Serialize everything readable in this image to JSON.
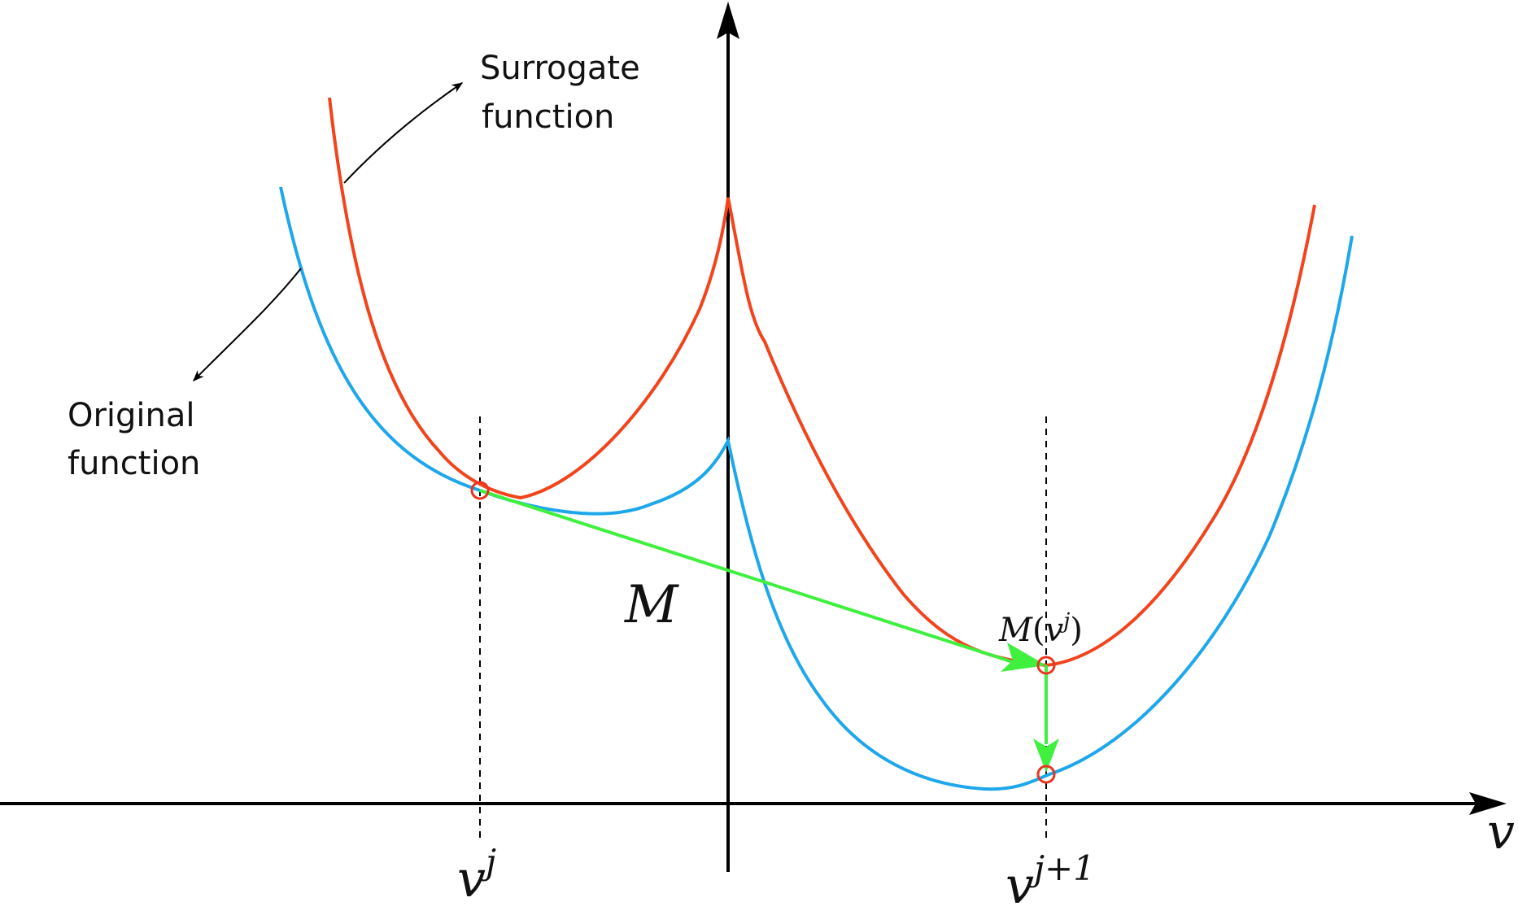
{
  "labels": {
    "surrogate_line1": "Surrogate",
    "surrogate_line2": "function",
    "original_line1": "Original",
    "original_line2": "function",
    "axis_var": "v",
    "v_j_base": "v",
    "v_j_sup": "j",
    "v_j1_base": "v",
    "v_j1_sup": "j+1",
    "mapping": "M",
    "mapping_point_prefix": "M",
    "mapping_point_open": "(",
    "mapping_point_var": "v",
    "mapping_point_sup": "j",
    "mapping_point_close": ")"
  },
  "colors": {
    "original": "#1ea7ea",
    "surrogate": "#f2441c",
    "step_arrow": "#3ff03f",
    "axis": "#000000",
    "marker": "#e8351f"
  }
}
